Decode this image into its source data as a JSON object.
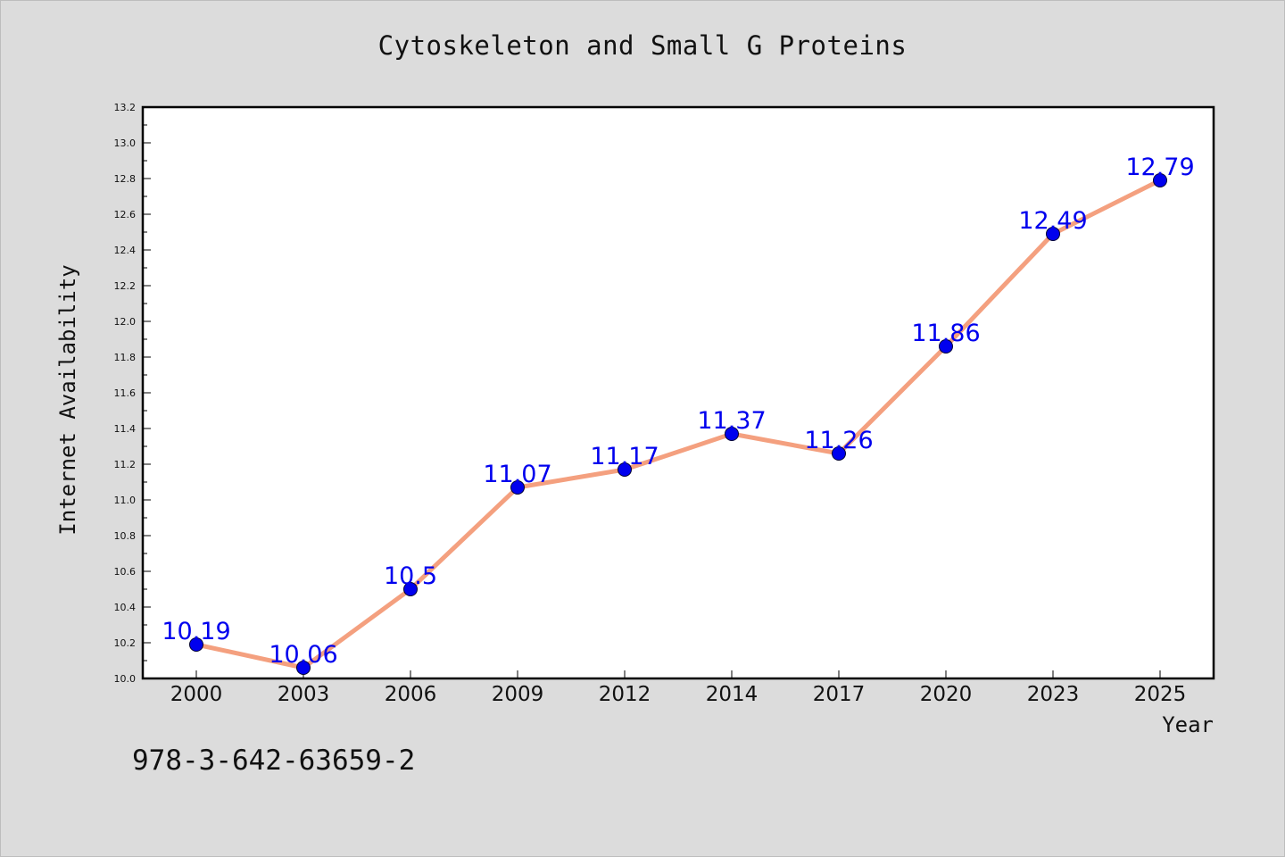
{
  "footer": {
    "code": "978-3-642-63659-2"
  },
  "colors": {
    "background": "#dcdcdc",
    "plot_background": "#ffffff",
    "line": "#f4a07f",
    "marker": "#0000ee",
    "label": "#0000ee",
    "axis": "#000000"
  },
  "chart_data": {
    "type": "line",
    "title": "Cytoskeleton and Small G Proteins",
    "xlabel": "Year",
    "ylabel": "Internet Availability",
    "categories": [
      "2000",
      "2003",
      "2006",
      "2009",
      "2012",
      "2014",
      "2017",
      "2020",
      "2023",
      "2025"
    ],
    "series": [
      {
        "values": [
          10.19,
          10.06,
          10.5,
          11.07,
          11.17,
          11.37,
          11.26,
          11.86,
          12.49,
          12.79
        ],
        "data_labels": [
          "10.19",
          "10.06",
          "10.5",
          "11.07",
          "11.17",
          "11.37",
          "11.26",
          "11.86",
          "12.49",
          "12.79"
        ]
      }
    ],
    "ylim": [
      10.0,
      13.2
    ],
    "yticks": [
      "10.0",
      "10.2",
      "10.4",
      "10.6",
      "10.8",
      "11.0",
      "11.2",
      "11.4",
      "11.6",
      "11.8",
      "12.0",
      "12.2",
      "12.4",
      "12.6",
      "12.8",
      "13.0",
      "13.2"
    ],
    "grid": false,
    "legend": "none"
  }
}
